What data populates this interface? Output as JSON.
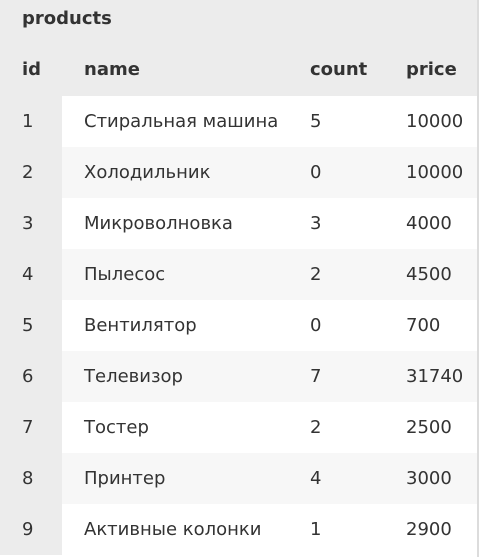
{
  "table": {
    "title": "products",
    "columns": [
      "id",
      "name",
      "count",
      "price"
    ],
    "rows": [
      {
        "id": "1",
        "name": "Стиральная машина",
        "count": "5",
        "price": "10000"
      },
      {
        "id": "2",
        "name": "Холодильник",
        "count": "0",
        "price": "10000"
      },
      {
        "id": "3",
        "name": "Микроволновка",
        "count": "3",
        "price": "4000"
      },
      {
        "id": "4",
        "name": "Пылесос",
        "count": "2",
        "price": "4500"
      },
      {
        "id": "5",
        "name": "Вентилятор",
        "count": "0",
        "price": "700"
      },
      {
        "id": "6",
        "name": "Телевизор",
        "count": "7",
        "price": "31740"
      },
      {
        "id": "7",
        "name": "Тостер",
        "count": "2",
        "price": "2500"
      },
      {
        "id": "8",
        "name": "Принтер",
        "count": "4",
        "price": "3000"
      },
      {
        "id": "9",
        "name": "Активные колонки",
        "count": "1",
        "price": "2900"
      }
    ]
  },
  "colors": {
    "header_bg": "#ececec",
    "row_alt_bg": "#f7f7f7",
    "row_bg": "#ffffff",
    "text": "#333333"
  }
}
